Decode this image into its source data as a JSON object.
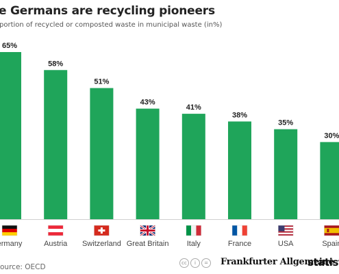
{
  "header": {
    "title": "e Germans are recycling pioneers",
    "subtitle": "portion of recycled or composted waste in municipal waste (in%)"
  },
  "footer": {
    "source": "ource: OECD",
    "partner_logo": "Frankfurter Allgemeine",
    "brand_logo": "statista"
  },
  "colors": {
    "bar": "#1fa55a",
    "label": "#222222",
    "category": "#444444",
    "axis": "#cfcfcf"
  },
  "chart_data": {
    "type": "bar",
    "title": "e Germans are recycling pioneers",
    "subtitle": "portion of recycled or composted waste in municipal waste (in%)",
    "categories": [
      "ermany",
      "Austria",
      "Switzerland",
      "Great Britain",
      "Italy",
      "France",
      "USA",
      "Spain"
    ],
    "values": [
      65,
      58,
      51,
      43,
      41,
      38,
      35,
      30
    ],
    "value_labels": [
      "65%",
      "58%",
      "51%",
      "43%",
      "41%",
      "38%",
      "35%",
      "30%"
    ],
    "flags": [
      "germany-flag-icon",
      "austria-flag-icon",
      "switzerland-flag-icon",
      "great-britain-flag-icon",
      "italy-flag-icon",
      "france-flag-icon",
      "usa-flag-icon",
      "spain-flag-icon"
    ],
    "ylim": [
      0,
      65
    ],
    "grid": false,
    "legend": "none"
  }
}
